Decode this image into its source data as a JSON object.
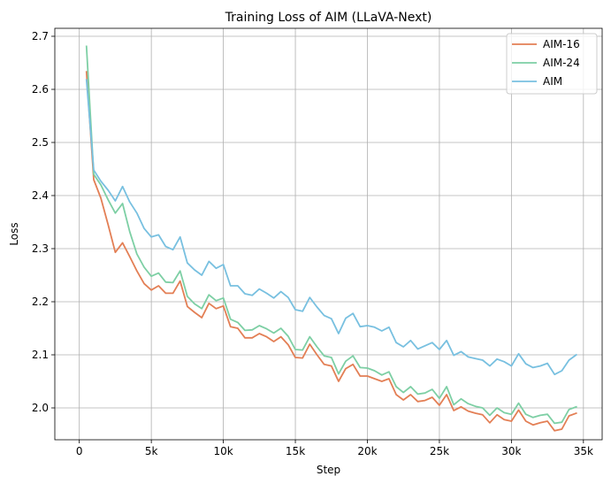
{
  "chart_data": {
    "type": "line",
    "title": "Training Loss of AIM (LLaVA-Next)",
    "xlabel": "Step",
    "ylabel": "Loss",
    "xlim": [
      -1700,
      36300
    ],
    "ylim": [
      1.94,
      2.715
    ],
    "xticks": [
      0,
      5000,
      10000,
      15000,
      20000,
      25000,
      30000,
      35000
    ],
    "xtick_labels": [
      "0",
      "5k",
      "10k",
      "15k",
      "20k",
      "25k",
      "30k",
      "35k"
    ],
    "yticks": [
      2.0,
      2.1,
      2.2,
      2.3,
      2.4,
      2.5,
      2.6,
      2.7
    ],
    "ytick_labels": [
      "2.0",
      "2.1",
      "2.2",
      "2.3",
      "2.4",
      "2.5",
      "2.6",
      "2.7"
    ],
    "grid": true,
    "legend_position": "top-right",
    "x": [
      500,
      1000,
      1500,
      2000,
      2500,
      3000,
      3500,
      4000,
      4500,
      5000,
      5500,
      6000,
      6500,
      7000,
      7500,
      8000,
      8500,
      9000,
      9500,
      10000,
      10500,
      11000,
      11500,
      12000,
      12500,
      13000,
      13500,
      14000,
      14500,
      15000,
      15500,
      16000,
      16500,
      17000,
      17500,
      18000,
      18500,
      19000,
      19500,
      20000,
      20500,
      21000,
      21500,
      22000,
      22500,
      23000,
      23500,
      24000,
      24500,
      25000,
      25500,
      26000,
      26500,
      27000,
      27500,
      28000,
      28500,
      29000,
      29500,
      30000,
      30500,
      31000,
      31500,
      32000,
      32500,
      33000,
      33500,
      34000,
      34500
    ],
    "series": [
      {
        "name": "AIM-16",
        "color": "#e37f55",
        "values": [
          2.633,
          2.43,
          2.395,
          2.345,
          2.293,
          2.311,
          2.285,
          2.258,
          2.234,
          2.222,
          2.23,
          2.216,
          2.216,
          2.239,
          2.191,
          2.18,
          2.17,
          2.197,
          2.187,
          2.192,
          2.153,
          2.15,
          2.132,
          2.132,
          2.14,
          2.134,
          2.125,
          2.134,
          2.119,
          2.095,
          2.094,
          2.12,
          2.1,
          2.082,
          2.079,
          2.05,
          2.074,
          2.082,
          2.06,
          2.06,
          2.055,
          2.05,
          2.055,
          2.025,
          2.015,
          2.025,
          2.012,
          2.014,
          2.02,
          2.005,
          2.025,
          1.995,
          2.002,
          1.994,
          1.99,
          1.987,
          1.972,
          1.987,
          1.978,
          1.975,
          1.996,
          1.975,
          1.968,
          1.972,
          1.975,
          1.957,
          1.96,
          1.985,
          1.99
        ]
      },
      {
        "name": "AIM-24",
        "color": "#7dcfa4",
        "values": [
          2.681,
          2.44,
          2.42,
          2.392,
          2.367,
          2.385,
          2.332,
          2.29,
          2.265,
          2.248,
          2.254,
          2.237,
          2.236,
          2.258,
          2.21,
          2.196,
          2.187,
          2.213,
          2.202,
          2.207,
          2.167,
          2.161,
          2.146,
          2.147,
          2.155,
          2.149,
          2.141,
          2.15,
          2.135,
          2.11,
          2.109,
          2.134,
          2.115,
          2.098,
          2.095,
          2.064,
          2.088,
          2.098,
          2.076,
          2.075,
          2.07,
          2.062,
          2.068,
          2.04,
          2.029,
          2.04,
          2.026,
          2.028,
          2.035,
          2.018,
          2.04,
          2.006,
          2.017,
          2.008,
          2.003,
          2.0,
          1.986,
          2.0,
          1.991,
          1.988,
          2.009,
          1.988,
          1.982,
          1.986,
          1.988,
          1.971,
          1.973,
          1.997,
          2.002
        ]
      },
      {
        "name": "AIM",
        "color": "#78c0e0",
        "values": [
          2.618,
          2.448,
          2.427,
          2.41,
          2.39,
          2.417,
          2.388,
          2.367,
          2.338,
          2.322,
          2.326,
          2.304,
          2.298,
          2.322,
          2.273,
          2.26,
          2.25,
          2.276,
          2.263,
          2.27,
          2.23,
          2.23,
          2.215,
          2.212,
          2.224,
          2.216,
          2.207,
          2.219,
          2.208,
          2.185,
          2.182,
          2.208,
          2.19,
          2.174,
          2.168,
          2.14,
          2.169,
          2.178,
          2.153,
          2.155,
          2.152,
          2.145,
          2.152,
          2.123,
          2.115,
          2.127,
          2.111,
          2.117,
          2.123,
          2.11,
          2.127,
          2.099,
          2.106,
          2.096,
          2.093,
          2.09,
          2.079,
          2.092,
          2.087,
          2.079,
          2.102,
          2.083,
          2.076,
          2.079,
          2.084,
          2.063,
          2.07,
          2.09,
          2.1
        ]
      }
    ]
  }
}
